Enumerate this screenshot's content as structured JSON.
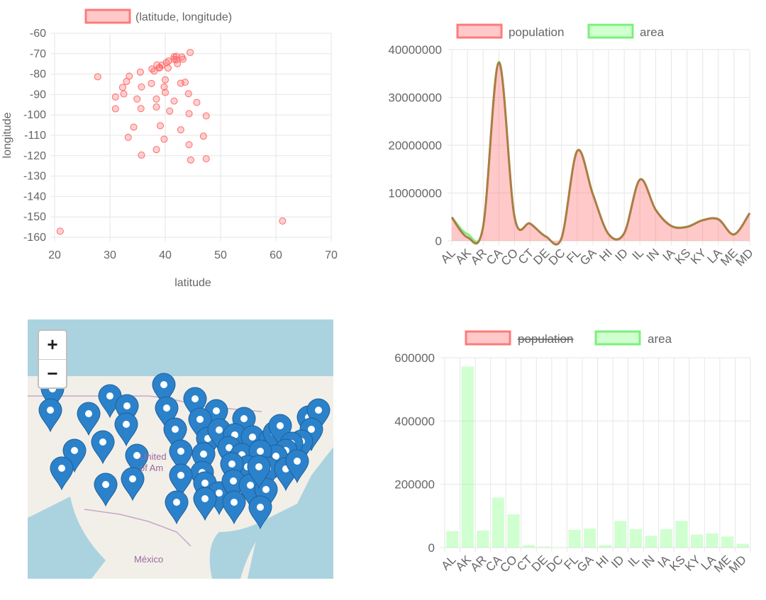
{
  "chart_data": [
    {
      "type": "scatter",
      "legend": [
        "(latitude, longitude)"
      ],
      "xlabel": "latitude",
      "ylabel": "longitude",
      "xlim": [
        20,
        70
      ],
      "ylim": [
        -160,
        -60
      ],
      "xticks": [
        "20",
        "30",
        "40",
        "50",
        "60",
        "70"
      ],
      "yticks": [
        "-60",
        "-70",
        "-80",
        "-90",
        "-100",
        "-110",
        "-120",
        "-130",
        "-140",
        "-150",
        "-160"
      ],
      "points": [
        [
          21,
          -157
        ],
        [
          61.2,
          -152
        ],
        [
          27.8,
          -81.3
        ],
        [
          31,
          -91.2
        ],
        [
          31,
          -97
        ],
        [
          32.3,
          -86.5
        ],
        [
          32.5,
          -89.7
        ],
        [
          33,
          -83.6
        ],
        [
          33.5,
          -81
        ],
        [
          33.3,
          -111
        ],
        [
          34.3,
          -106
        ],
        [
          34.9,
          -92.2
        ],
        [
          35.5,
          -79
        ],
        [
          35.7,
          -86.3
        ],
        [
          35.6,
          -96.9
        ],
        [
          35.7,
          -119.7
        ],
        [
          37.6,
          -77.5
        ],
        [
          37.5,
          -84.6
        ],
        [
          38,
          -78.5
        ],
        [
          38.4,
          -117
        ],
        [
          38.4,
          -92.2
        ],
        [
          38.4,
          -96.1
        ],
        [
          38.5,
          -75.5
        ],
        [
          38.9,
          -77
        ],
        [
          39,
          -76.8
        ],
        [
          39.1,
          -105.3
        ],
        [
          39.4,
          -75.6
        ],
        [
          39.8,
          -86.3
        ],
        [
          40,
          -82.8
        ],
        [
          40,
          -89
        ],
        [
          39.8,
          -111.9
        ],
        [
          40.2,
          -74.4
        ],
        [
          40.5,
          -77
        ],
        [
          40.8,
          -98.1
        ],
        [
          40.6,
          -73.6
        ],
        [
          41.6,
          -93.2
        ],
        [
          41.6,
          -71.5
        ],
        [
          41.6,
          -72.7
        ],
        [
          42,
          -71.3
        ],
        [
          42,
          -73
        ],
        [
          42.2,
          -74.9
        ],
        [
          42.8,
          -84.5
        ],
        [
          42.8,
          -107.3
        ],
        [
          43,
          -71.6
        ],
        [
          43.2,
          -72.7
        ],
        [
          43.6,
          -84
        ],
        [
          44.2,
          -89.6
        ],
        [
          44.3,
          -99.4
        ],
        [
          44.3,
          -114.6
        ],
        [
          44.5,
          -69.4
        ],
        [
          44.6,
          -122.1
        ],
        [
          45.7,
          -93.9
        ],
        [
          46.9,
          -110.4
        ],
        [
          47.4,
          -100.5
        ],
        [
          47.4,
          -121.5
        ]
      ]
    },
    {
      "type": "line",
      "categories": [
        "AL",
        "AK",
        "AR",
        "CA",
        "CO",
        "CT",
        "DE",
        "DC",
        "FL",
        "GA",
        "HI",
        "ID",
        "IL",
        "IN",
        "IA",
        "KS",
        "KY",
        "LA",
        "ME",
        "MD"
      ],
      "series": [
        {
          "name": "population",
          "values": [
            4900000,
            740000,
            3000000,
            37250000,
            5000000,
            3600000,
            900000,
            600000,
            18800000,
            9700000,
            1400000,
            1600000,
            12800000,
            6500000,
            3100000,
            2900000,
            4300000,
            4500000,
            1330000,
            5800000
          ]
        },
        {
          "name": "area",
          "values": [
            52420,
            665384,
            53179,
            163695,
            104094,
            5543,
            2489,
            68,
            65758,
            59425,
            10932,
            83569,
            57914,
            36420,
            56273,
            82278,
            40408,
            52378,
            35380,
            12406
          ]
        }
      ],
      "ylim": [
        0,
        40000000
      ],
      "yticks": [
        "0",
        "10000000",
        "20000000",
        "30000000",
        "40000000"
      ]
    },
    {
      "type": "bar",
      "categories": [
        "AL",
        "AK",
        "AR",
        "CA",
        "CO",
        "CT",
        "DE",
        "DC",
        "FL",
        "GA",
        "HI",
        "ID",
        "IL",
        "IN",
        "IA",
        "KS",
        "KY",
        "LA",
        "ME",
        "MD"
      ],
      "series": [
        {
          "name": "population",
          "hidden": true
        },
        {
          "name": "area",
          "values": [
            52000,
            572000,
            54000,
            158000,
            105000,
            8000,
            3000,
            500,
            56000,
            60000,
            8000,
            84000,
            58000,
            37000,
            58000,
            84000,
            41000,
            45000,
            35000,
            12000
          ]
        }
      ],
      "ylim": [
        0,
        600000
      ],
      "yticks": [
        "0",
        "200000",
        "400000",
        "600000"
      ]
    }
  ],
  "map": {
    "zoom_in": "+",
    "zoom_out": "−",
    "labels": {
      "country": "United\nof Am",
      "mexico": "México"
    }
  },
  "colors": {
    "pop_fill": "rgba(255,99,99,0.35)",
    "pop_line": "#ff7a7a",
    "area_fill": "rgba(120,255,120,0.35)",
    "area_line": "#7bf07b",
    "scatter": "#ff6b6b",
    "marker": "#2b82cb",
    "combined_line": "#b07a46",
    "grid": "#e6e6e6"
  }
}
